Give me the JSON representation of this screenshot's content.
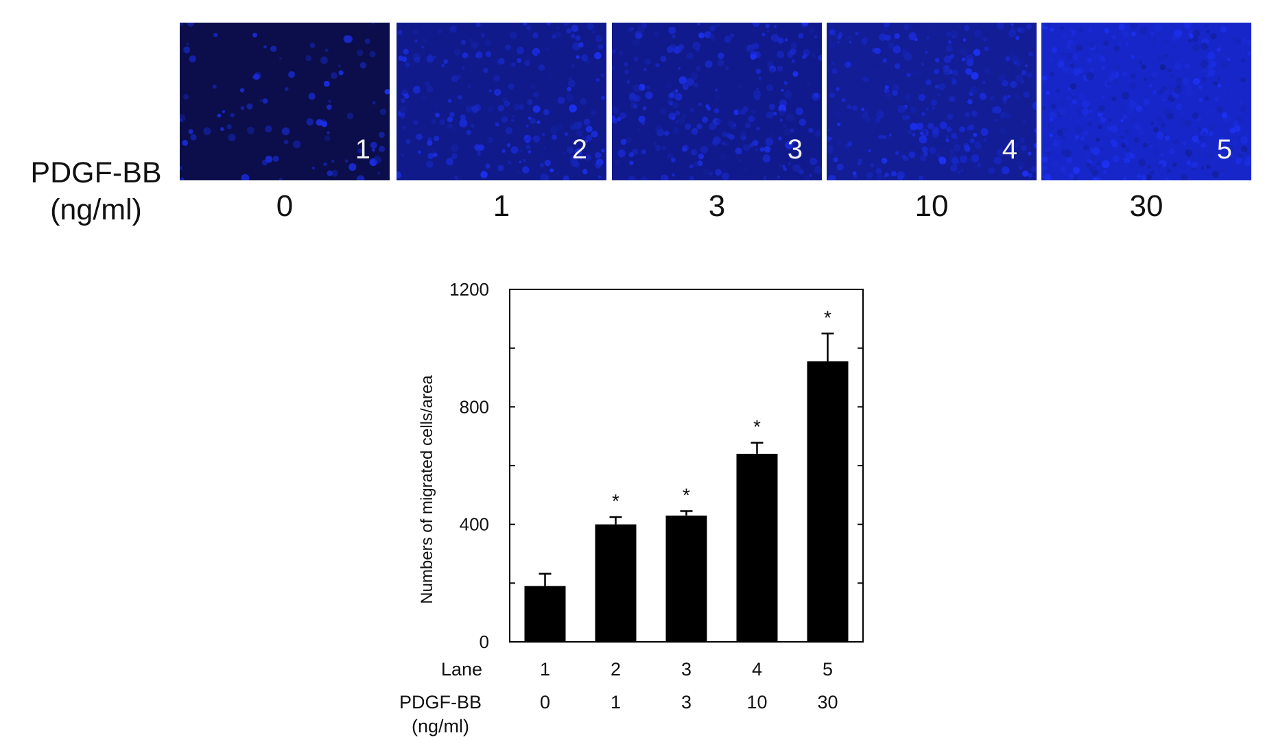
{
  "micrographs": {
    "row_label_line1": "PDGF-BB",
    "row_label_line2": "(ng/ml)",
    "panels": [
      {
        "number": "1",
        "dose": "0",
        "fill_color": "#0b0e4a",
        "cell_density": 0.12
      },
      {
        "number": "2",
        "dose": "1",
        "fill_color": "#101a8a",
        "cell_density": 0.45
      },
      {
        "number": "3",
        "dose": "3",
        "fill_color": "#111a8c",
        "cell_density": 0.5
      },
      {
        "number": "4",
        "dose": "10",
        "fill_color": "#121d96",
        "cell_density": 0.62
      },
      {
        "number": "5",
        "dose": "30",
        "fill_color": "#1726c8",
        "cell_density": 0.85
      }
    ]
  },
  "chart_data": {
    "type": "bar",
    "categories": [
      "1",
      "2",
      "3",
      "4",
      "5"
    ],
    "values": [
      190,
      400,
      430,
      640,
      955
    ],
    "errors": [
      42,
      25,
      15,
      38,
      95
    ],
    "significant": [
      false,
      true,
      true,
      true,
      true
    ],
    "significance_marker": "*",
    "ylabel": "Numbers of migrated cells/area",
    "ylim": [
      0,
      1200
    ],
    "yticks": [
      0,
      400,
      800,
      1200
    ],
    "bar_color": "#000000",
    "row_labels": {
      "lane_label": "Lane",
      "lanes": [
        "1",
        "2",
        "3",
        "4",
        "5"
      ],
      "dose_label_line1": "PDGF-BB",
      "dose_label_line2": "(ng/ml)",
      "doses": [
        "0",
        "1",
        "3",
        "10",
        "30"
      ]
    }
  }
}
